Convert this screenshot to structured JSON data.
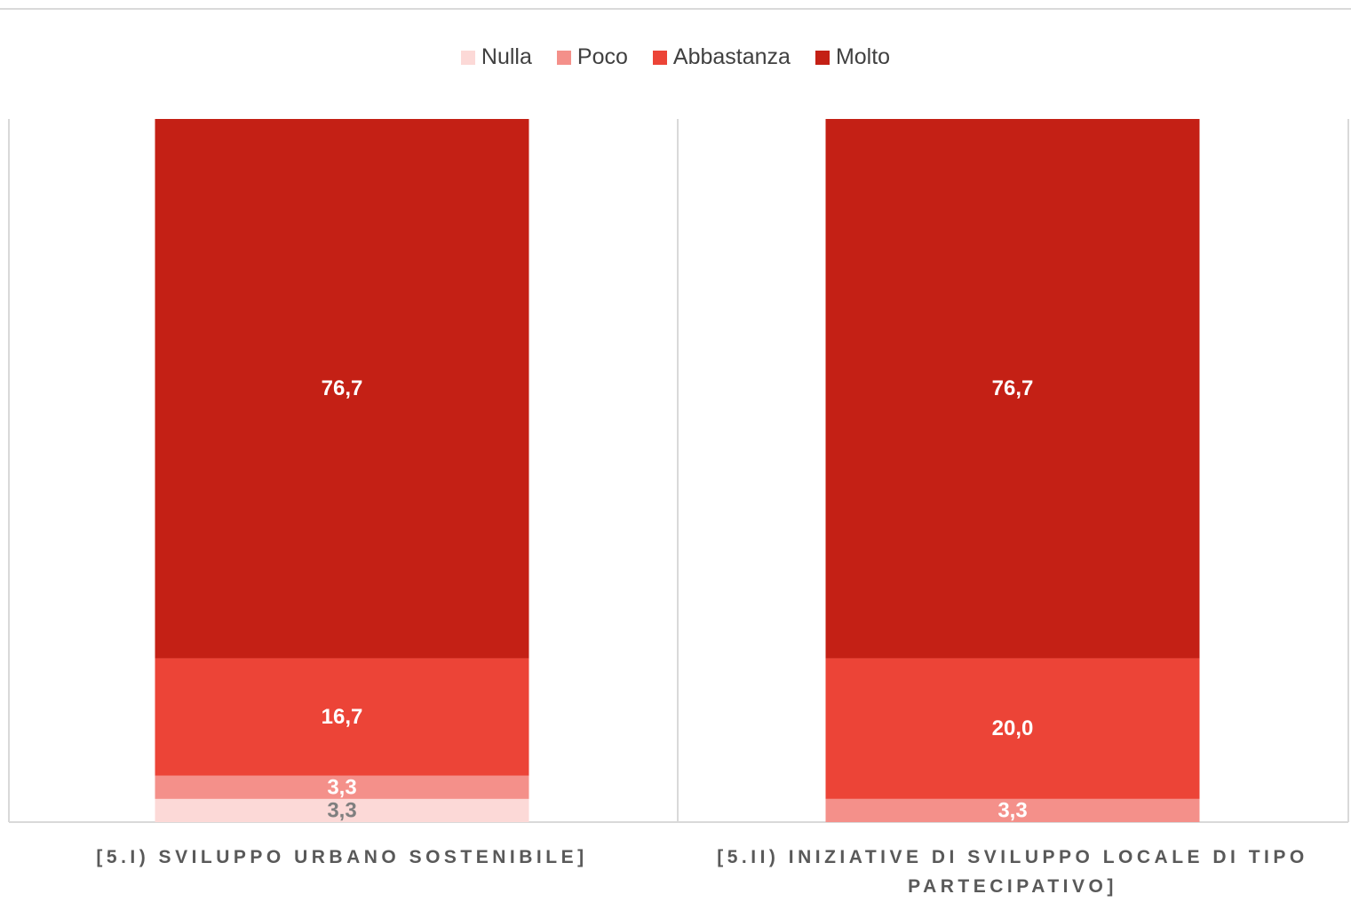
{
  "chart_data": {
    "type": "bar",
    "stacked": true,
    "normalized_percent": true,
    "legend_position": "top-center",
    "grid": false,
    "ylim": [
      0,
      100
    ],
    "categories": [
      [
        "[5.I) SVILUPPO URBANO SOSTENIBILE]"
      ],
      [
        "[5.II) INIZIATIVE DI SVILUPPO LOCALE DI TIPO",
        "PARTECIPATIVO]"
      ]
    ],
    "series": [
      {
        "name": "Nulla",
        "color": "#fcd9d7",
        "label_color": "#7f7f7f",
        "values": [
          3.3,
          0.0
        ]
      },
      {
        "name": "Poco",
        "color": "#f4908a",
        "label_color": "#ffffff",
        "values": [
          3.3,
          3.3
        ]
      },
      {
        "name": "Abbastanza",
        "color": "#ec4437",
        "label_color": "#ffffff",
        "values": [
          16.7,
          20.0
        ]
      },
      {
        "name": "Molto",
        "color": "#c42015",
        "label_color": "#ffffff",
        "values": [
          76.7,
          76.7
        ]
      }
    ],
    "data_labels": [
      [
        "3,3",
        "3,3",
        "16,7",
        "76,7"
      ],
      [
        "",
        "3,3",
        "20,0",
        "76,7"
      ]
    ]
  }
}
